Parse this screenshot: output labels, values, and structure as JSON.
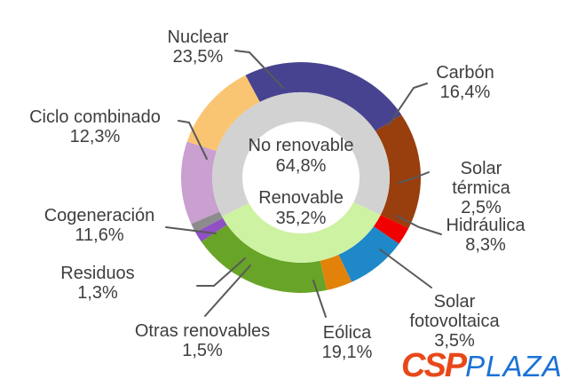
{
  "chart_data": {
    "type": "donut",
    "unit": "%",
    "text_color": "#3E3E3E",
    "leader_line_color": "#595959",
    "outer_ring": [
      {
        "id": "nuclear",
        "label": "Nuclear",
        "value": 23.5,
        "display": "23,5%",
        "color": "#474390"
      },
      {
        "id": "carbon",
        "label": "Carbón",
        "value": 16.4,
        "display": "16,4%",
        "color": "#993E0D"
      },
      {
        "id": "solar-termica",
        "label": "Solar térmica",
        "value": 2.5,
        "display": "2,5%",
        "color": "#F00000"
      },
      {
        "id": "hidraulica",
        "label": "Hidráulica",
        "value": 8.3,
        "display": "8,3%",
        "color": "#1E88C8"
      },
      {
        "id": "solar-fotovoltaica",
        "label": "Solar\nfotovoltaica",
        "value": 3.5,
        "display": "3,5%",
        "color": "#E2820A"
      },
      {
        "id": "eolica",
        "label": "Eólica",
        "value": 19.1,
        "display": "19,1%",
        "color": "#68A428"
      },
      {
        "id": "otras-renovables",
        "label": "Otras renovables",
        "value": 1.5,
        "display": "1,5%",
        "color": "#8F51C4"
      },
      {
        "id": "residuos",
        "label": "Residuos",
        "value": 1.3,
        "display": "1,3%",
        "color": "#8C8C8C"
      },
      {
        "id": "cogeneracion",
        "label": "Cogeneración",
        "value": 11.6,
        "display": "11,6%",
        "color": "#C9A0D0"
      },
      {
        "id": "ciclo-combinado",
        "label": "Ciclo combinado",
        "value": 12.3,
        "display": "12,3%",
        "color": "#FAC573"
      }
    ],
    "inner_ring": [
      {
        "id": "renovable",
        "label": "Renovable",
        "value": 35.2,
        "display": "35,2%",
        "color": "#CDF2A2"
      },
      {
        "id": "no-renovable",
        "label": "No renovable",
        "value": 64.8,
        "display": "64,8%",
        "color": "#D2D2D2"
      }
    ],
    "center_labels": [
      {
        "label": "No renovable",
        "display": "64,8%"
      },
      {
        "label": "Renovable",
        "display": "35,2%"
      }
    ]
  },
  "logo": {
    "csp": "CSP",
    "plaza": "PLAZA",
    "csp_color": "#E8481A",
    "plaza_color": "#1C72D5"
  }
}
